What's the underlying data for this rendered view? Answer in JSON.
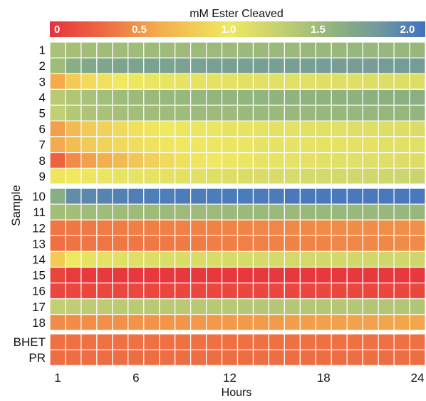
{
  "chart_data": {
    "type": "heatmap",
    "title": "mM Ester Cleaved",
    "xlabel": "Hours",
    "ylabel": "Sample",
    "colorbar": {
      "min": 0,
      "max": 2.1,
      "ticks": [
        0,
        0.5,
        1.0,
        1.5,
        2.0
      ],
      "tick_labels": [
        "0",
        "0.5",
        "1.0",
        "1.5",
        "2.0"
      ],
      "placement": "top",
      "stops": [
        {
          "value": 0.0,
          "color": "#e8313d"
        },
        {
          "value": 0.3,
          "color": "#ee6a42"
        },
        {
          "value": 0.6,
          "color": "#f3ab4d"
        },
        {
          "value": 1.0,
          "color": "#f0e860"
        },
        {
          "value": 1.3,
          "color": "#c2cf72"
        },
        {
          "value": 1.6,
          "color": "#8fb27e"
        },
        {
          "value": 1.85,
          "color": "#6f979d"
        },
        {
          "value": 2.1,
          "color": "#3f72c4"
        }
      ]
    },
    "x_ticks": [
      1,
      6,
      12,
      18,
      24
    ],
    "x_tick_labels": [
      "1",
      "6",
      "12",
      "18",
      "24"
    ],
    "hours": [
      1,
      2,
      3,
      4,
      5,
      6,
      7,
      8,
      9,
      10,
      11,
      12,
      13,
      14,
      15,
      16,
      17,
      18,
      19,
      20,
      21,
      22,
      23,
      24
    ],
    "groups": [
      {
        "rows": [
          {
            "label": "1",
            "values": [
              1.45,
              1.47,
              1.48,
              1.5,
              1.5,
              1.5,
              1.51,
              1.51,
              1.51,
              1.52,
              1.52,
              1.52,
              1.53,
              1.53,
              1.53,
              1.53,
              1.54,
              1.54,
              1.54,
              1.55,
              1.55,
              1.55,
              1.55,
              1.55
            ]
          },
          {
            "label": "2",
            "values": [
              1.5,
              1.65,
              1.7,
              1.72,
              1.73,
              1.74,
              1.75,
              1.75,
              1.76,
              1.76,
              1.77,
              1.77,
              1.77,
              1.78,
              1.78,
              1.78,
              1.78,
              1.79,
              1.79,
              1.79,
              1.79,
              1.8,
              1.8,
              1.8
            ]
          },
          {
            "label": "3",
            "values": [
              0.6,
              0.8,
              0.9,
              0.95,
              1.0,
              1.02,
              1.04,
              1.05,
              1.06,
              1.07,
              1.08,
              1.08,
              1.09,
              1.09,
              1.1,
              1.1,
              1.1,
              1.11,
              1.11,
              1.11,
              1.12,
              1.12,
              1.12,
              1.12
            ]
          },
          {
            "label": "4",
            "values": [
              1.35,
              1.4,
              1.45,
              1.48,
              1.5,
              1.52,
              1.53,
              1.54,
              1.55,
              1.56,
              1.57,
              1.57,
              1.58,
              1.58,
              1.59,
              1.59,
              1.6,
              1.6,
              1.61,
              1.61,
              1.62,
              1.62,
              1.62,
              1.63
            ]
          },
          {
            "label": "5",
            "values": [
              1.3,
              1.38,
              1.42,
              1.45,
              1.47,
              1.48,
              1.49,
              1.5,
              1.5,
              1.51,
              1.52,
              1.52,
              1.53,
              1.53,
              1.53,
              1.54,
              1.54,
              1.55,
              1.55,
              1.55,
              1.56,
              1.56,
              1.56,
              1.57
            ]
          },
          {
            "label": "6",
            "values": [
              0.55,
              0.7,
              0.8,
              0.85,
              0.9,
              0.95,
              0.98,
              1.0,
              1.02,
              1.03,
              1.04,
              1.05,
              1.06,
              1.07,
              1.08,
              1.08,
              1.09,
              1.1,
              1.1,
              1.11,
              1.11,
              1.12,
              1.12,
              1.13
            ]
          },
          {
            "label": "7",
            "values": [
              0.6,
              0.72,
              0.8,
              0.86,
              0.9,
              0.93,
              0.96,
              0.98,
              1.0,
              1.01,
              1.02,
              1.03,
              1.04,
              1.05,
              1.05,
              1.06,
              1.06,
              1.07,
              1.07,
              1.08,
              1.08,
              1.09,
              1.09,
              1.1
            ]
          },
          {
            "label": "8",
            "values": [
              0.25,
              0.45,
              0.55,
              0.62,
              0.7,
              0.78,
              0.85,
              0.9,
              0.95,
              0.98,
              1.0,
              1.02,
              1.04,
              1.05,
              1.06,
              1.07,
              1.08,
              1.09,
              1.1,
              1.1,
              1.11,
              1.11,
              1.12,
              1.12
            ]
          },
          {
            "label": "9",
            "values": [
              0.98,
              1.0,
              1.02,
              1.04,
              1.05,
              1.06,
              1.07,
              1.08,
              1.09,
              1.1,
              1.11,
              1.12,
              1.13,
              1.14,
              1.15,
              1.16,
              1.17,
              1.18,
              1.19,
              1.2,
              1.21,
              1.22,
              1.23,
              1.24
            ]
          }
        ]
      },
      {
        "rows": [
          {
            "label": "10",
            "values": [
              1.65,
              1.92,
              1.96,
              1.98,
              2.0,
              2.01,
              2.02,
              2.02,
              2.03,
              2.03,
              2.03,
              2.04,
              2.04,
              2.04,
              2.04,
              2.05,
              2.05,
              2.05,
              2.05,
              2.05,
              2.05,
              2.05,
              2.05,
              2.05
            ]
          },
          {
            "label": "11",
            "values": [
              1.48,
              1.48,
              1.5,
              1.5,
              1.51,
              1.51,
              1.51,
              1.52,
              1.52,
              1.52,
              1.52,
              1.53,
              1.53,
              1.53,
              1.53,
              1.53,
              1.54,
              1.54,
              1.54,
              1.54,
              1.54,
              1.55,
              1.55,
              1.55
            ]
          },
          {
            "label": "12",
            "values": [
              0.35,
              0.36,
              0.37,
              0.38,
              0.38,
              0.39,
              0.39,
              0.4,
              0.4,
              0.41,
              0.41,
              0.42,
              0.42,
              0.43,
              0.43,
              0.44,
              0.44,
              0.45,
              0.45,
              0.46,
              0.46,
              0.47,
              0.47,
              0.48
            ]
          },
          {
            "label": "13",
            "values": [
              0.33,
              0.34,
              0.35,
              0.35,
              0.36,
              0.36,
              0.37,
              0.37,
              0.38,
              0.38,
              0.39,
              0.39,
              0.4,
              0.4,
              0.41,
              0.41,
              0.42,
              0.42,
              0.43,
              0.43,
              0.44,
              0.44,
              0.45,
              0.45
            ]
          },
          {
            "label": "14",
            "values": [
              0.8,
              1.0,
              1.05,
              1.08,
              1.1,
              1.11,
              1.12,
              1.13,
              1.14,
              1.15,
              1.15,
              1.16,
              1.16,
              1.17,
              1.17,
              1.18,
              1.18,
              1.19,
              1.19,
              1.2,
              1.2,
              1.21,
              1.21,
              1.22
            ]
          },
          {
            "label": "15",
            "values": [
              0.1,
              0.05,
              0.04,
              0.04,
              0.03,
              0.03,
              0.03,
              0.03,
              0.03,
              0.03,
              0.03,
              0.03,
              0.03,
              0.03,
              0.03,
              0.03,
              0.03,
              0.03,
              0.03,
              0.03,
              0.03,
              0.03,
              0.03,
              0.03
            ]
          },
          {
            "label": "16",
            "values": [
              0.12,
              0.12,
              0.12,
              0.12,
              0.12,
              0.12,
              0.12,
              0.12,
              0.12,
              0.12,
              0.12,
              0.12,
              0.12,
              0.12,
              0.12,
              0.12,
              0.12,
              0.12,
              0.12,
              0.12,
              0.12,
              0.12,
              0.12,
              0.12
            ]
          },
          {
            "label": "17",
            "values": [
              1.3,
              1.32,
              1.33,
              1.33,
              1.34,
              1.34,
              1.35,
              1.35,
              1.35,
              1.36,
              1.36,
              1.36,
              1.37,
              1.37,
              1.37,
              1.37,
              1.38,
              1.38,
              1.38,
              1.38,
              1.39,
              1.39,
              1.39,
              1.4
            ]
          },
          {
            "label": "18",
            "values": [
              0.45,
              0.46,
              0.47,
              0.48,
              0.48,
              0.49,
              0.49,
              0.5,
              0.5,
              0.51,
              0.51,
              0.52,
              0.52,
              0.53,
              0.53,
              0.54,
              0.54,
              0.55,
              0.55,
              0.56,
              0.56,
              0.57,
              0.57,
              0.58
            ]
          }
        ]
      },
      {
        "rows": [
          {
            "label": "BHET",
            "values": [
              0.33,
              0.33,
              0.33,
              0.33,
              0.33,
              0.33,
              0.33,
              0.33,
              0.33,
              0.33,
              0.33,
              0.33,
              0.33,
              0.33,
              0.33,
              0.33,
              0.33,
              0.33,
              0.33,
              0.33,
              0.33,
              0.33,
              0.33,
              0.33
            ]
          },
          {
            "label": "PR",
            "values": [
              0.32,
              0.32,
              0.32,
              0.32,
              0.32,
              0.32,
              0.32,
              0.32,
              0.32,
              0.32,
              0.32,
              0.32,
              0.32,
              0.32,
              0.32,
              0.32,
              0.32,
              0.32,
              0.32,
              0.32,
              0.32,
              0.32,
              0.32,
              0.32
            ]
          }
        ]
      }
    ]
  }
}
